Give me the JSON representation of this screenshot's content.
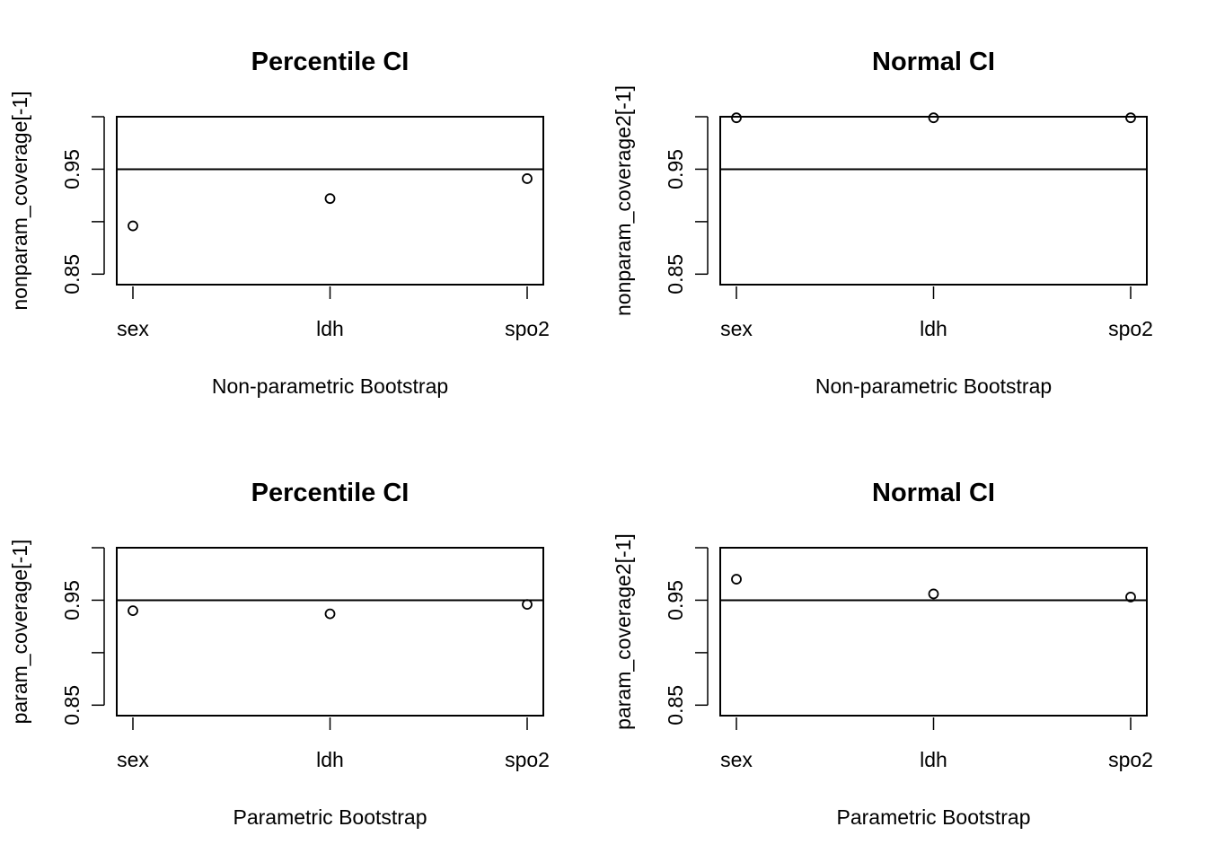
{
  "chart_data": [
    {
      "type": "scatter",
      "title": "Percentile CI",
      "xlabel": "Non-parametric Bootstrap",
      "ylabel": "nonparam_coverage[-1]",
      "categories": [
        "sex",
        "ldh",
        "spo2"
      ],
      "values": [
        0.896,
        0.922,
        0.941
      ],
      "ylim": [
        0.84,
        1.0
      ],
      "yticks": [
        "0.85",
        "0.95"
      ],
      "ytick_positions": [
        0.85,
        0.9,
        0.95,
        1.0
      ],
      "hline": 0.95
    },
    {
      "type": "scatter",
      "title": "Normal CI",
      "xlabel": "Non-parametric Bootstrap",
      "ylabel": "nonparam_coverage2[-1]",
      "categories": [
        "sex",
        "ldh",
        "spo2"
      ],
      "values": [
        0.999,
        0.999,
        0.999
      ],
      "ylim": [
        0.84,
        1.0
      ],
      "yticks": [
        "0.85",
        "0.95"
      ],
      "ytick_positions": [
        0.85,
        0.9,
        0.95,
        1.0
      ],
      "hline": 0.95
    },
    {
      "type": "scatter",
      "title": "Percentile CI",
      "xlabel": "Parametric Bootstrap",
      "ylabel": "param_coverage[-1]",
      "categories": [
        "sex",
        "ldh",
        "spo2"
      ],
      "values": [
        0.94,
        0.937,
        0.946
      ],
      "ylim": [
        0.84,
        1.0
      ],
      "yticks": [
        "0.85",
        "0.95"
      ],
      "ytick_positions": [
        0.85,
        0.9,
        0.95,
        1.0
      ],
      "hline": 0.95
    },
    {
      "type": "scatter",
      "title": "Normal CI",
      "xlabel": "Parametric Bootstrap",
      "ylabel": "param_coverage2[-1]",
      "categories": [
        "sex",
        "ldh",
        "spo2"
      ],
      "values": [
        0.97,
        0.956,
        0.953
      ],
      "ylim": [
        0.84,
        1.0
      ],
      "yticks": [
        "0.85",
        "0.95"
      ],
      "ytick_positions": [
        0.85,
        0.9,
        0.95,
        1.0
      ],
      "hline": 0.95
    }
  ]
}
